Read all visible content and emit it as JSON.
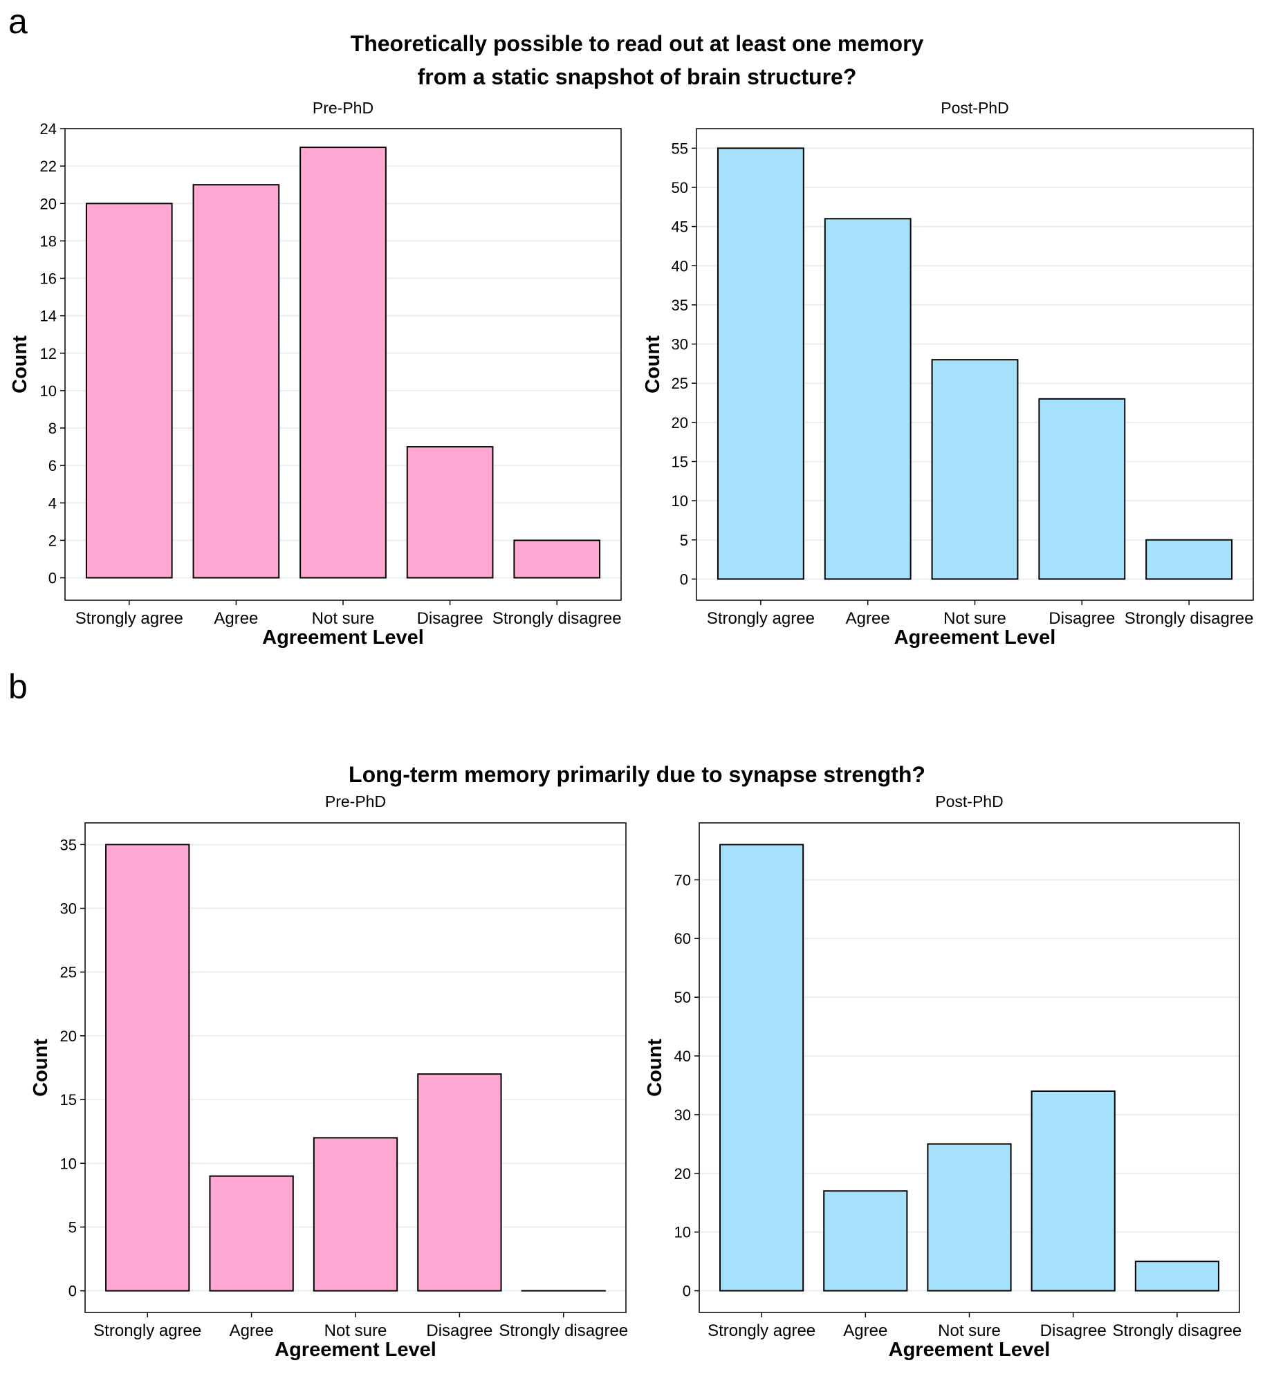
{
  "panels": {
    "a": {
      "label": "a",
      "title_lines": [
        "Theoretically possible to read out at least one memory",
        "from a static snapshot of brain structure?"
      ]
    },
    "b": {
      "label": "b",
      "title_lines": [
        "Long-term memory primarily due to synapse strength?"
      ]
    }
  },
  "colors": {
    "pre": "#ffa8d3",
    "post": "#a6e1fb",
    "grid": "#e8eef2"
  },
  "chart_data": [
    {
      "type": "bar",
      "panel": "a",
      "facet": "Pre-PhD",
      "categories": [
        "Strongly agree",
        "Agree",
        "Not sure",
        "Disagree",
        "Strongly disagree"
      ],
      "values": [
        20,
        21,
        23,
        7,
        2
      ],
      "xlabel": "Agreement Level",
      "ylabel": "Count",
      "ylim": [
        -1.2,
        24
      ],
      "yticks": [
        0,
        2,
        4,
        6,
        8,
        10,
        12,
        14,
        16,
        18,
        20,
        22,
        24
      ],
      "grid": true,
      "color": "pre"
    },
    {
      "type": "bar",
      "panel": "a",
      "facet": "Post-PhD",
      "categories": [
        "Strongly agree",
        "Agree",
        "Not sure",
        "Disagree",
        "Strongly disagree"
      ],
      "values": [
        55,
        46,
        28,
        23,
        5
      ],
      "xlabel": "Agreement Level",
      "ylabel": "Count",
      "ylim": [
        -2.7,
        57.5
      ],
      "yticks": [
        0,
        5,
        10,
        15,
        20,
        25,
        30,
        35,
        40,
        45,
        50,
        55
      ],
      "grid": true,
      "color": "post"
    },
    {
      "type": "bar",
      "panel": "b",
      "facet": "Pre-PhD",
      "categories": [
        "Strongly agree",
        "Agree",
        "Not sure",
        "Disagree",
        "Strongly disagree"
      ],
      "values": [
        35,
        9,
        12,
        17,
        0
      ],
      "xlabel": "Agreement Level",
      "ylabel": "Count",
      "ylim": [
        -1.7,
        36.7
      ],
      "yticks": [
        0,
        5,
        10,
        15,
        20,
        25,
        30,
        35
      ],
      "grid": true,
      "color": "pre"
    },
    {
      "type": "bar",
      "panel": "b",
      "facet": "Post-PhD",
      "categories": [
        "Strongly agree",
        "Agree",
        "Not sure",
        "Disagree",
        "Strongly disagree"
      ],
      "values": [
        76,
        17,
        25,
        34,
        5
      ],
      "xlabel": "Agreement Level",
      "ylabel": "Count",
      "ylim": [
        -3.7,
        79.7
      ],
      "yticks": [
        0,
        10,
        20,
        30,
        40,
        50,
        60,
        70
      ],
      "grid": true,
      "color": "post"
    }
  ]
}
